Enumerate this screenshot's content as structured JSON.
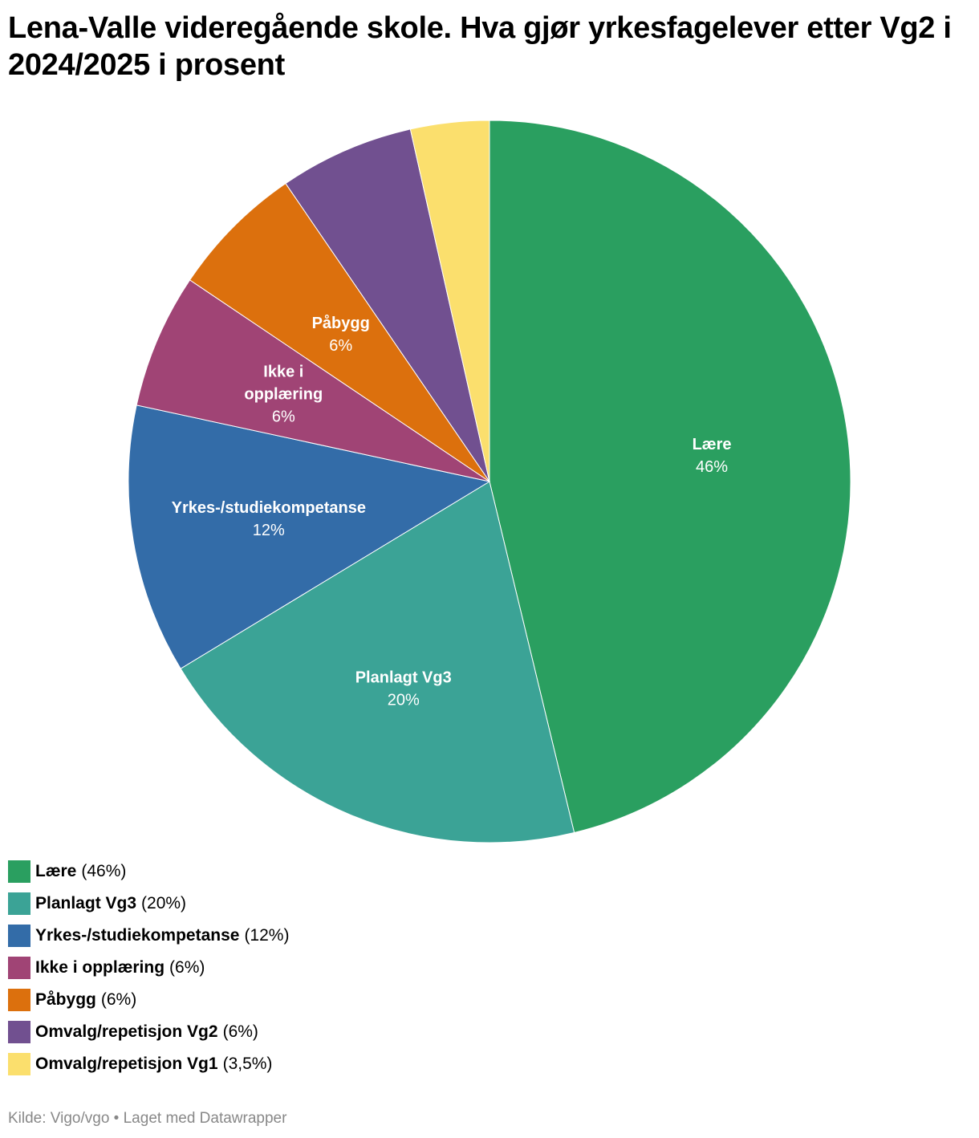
{
  "title": "Lena-Valle videregående skole. Hva gjør yrkesfagelever etter Vg2 i 2024/2025 i prosent",
  "footer": "Kilde: Vigo/vgo • Laget med Datawrapper",
  "chart_data": {
    "type": "pie",
    "title": "Lena-Valle videregående skole. Hva gjør yrkesfagelever etter Vg2 i 2024/2025 i prosent",
    "start": "12 o'clock, clockwise",
    "slices": [
      {
        "label": "Lære",
        "value": 46,
        "display": "46%",
        "legend_value": "(46%)",
        "color": "#2a9f60",
        "slice_label": [
          "Lære"
        ]
      },
      {
        "label": "Planlagt Vg3",
        "value": 20,
        "display": "20%",
        "legend_value": "(20%)",
        "color": "#3ba396",
        "slice_label": [
          "Planlagt Vg3"
        ]
      },
      {
        "label": "Yrkes-/studiekompetanse",
        "value": 12,
        "display": "12%",
        "legend_value": "(12%)",
        "color": "#336ca8",
        "slice_label": [
          "Yrkes-/studiekompetanse"
        ]
      },
      {
        "label": "Ikke i opplæring",
        "value": 6,
        "display": "6%",
        "legend_value": "(6%)",
        "color": "#a04475",
        "slice_label": [
          "Ikke i",
          "opplæring"
        ]
      },
      {
        "label": "Påbygg",
        "value": 6,
        "display": "6%",
        "legend_value": "(6%)",
        "color": "#dc700d",
        "slice_label": [
          "Påbygg"
        ]
      },
      {
        "label": "Omvalg/repetisjon Vg2",
        "value": 6,
        "display": "6%",
        "legend_value": "(6%)",
        "color": "#715090",
        "slice_label": []
      },
      {
        "label": "Omvalg/repetisjon Vg1",
        "value": 3.5,
        "display": "3,5%",
        "legend_value": "(3,5%)",
        "color": "#fbdf6d",
        "slice_label": []
      }
    ]
  }
}
